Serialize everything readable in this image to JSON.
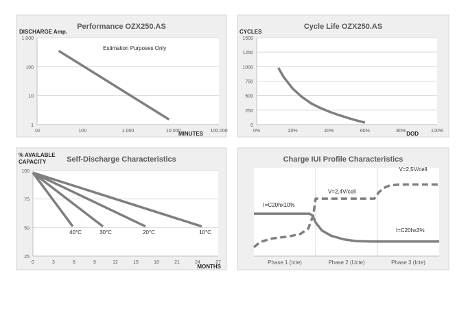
{
  "colors": {
    "panel_bg": "#efefef",
    "panel_border": "#d4d4d4",
    "plot_bg": "#ffffff",
    "grid": "#d9d9d9",
    "axis": "#bfbfbf",
    "series": "#7f7f7f",
    "title": "#595959",
    "text": "#262626",
    "tick": "#595959"
  },
  "chart_data": [
    {
      "type": "line",
      "title": "Performance OZX250.AS",
      "ylabel": "DISCHARGE Amp.",
      "xlabel": "MINUTES",
      "x_scale": "log",
      "y_scale": "log",
      "xlim": [
        10,
        100000
      ],
      "ylim": [
        1,
        1000
      ],
      "x_ticks": [
        10,
        100,
        1000,
        10000,
        100000
      ],
      "x_tick_labels": [
        "10",
        "100",
        "1.000",
        "10.000",
        "100.000"
      ],
      "y_ticks": [
        1,
        10,
        100,
        1000
      ],
      "y_tick_labels": [
        "1",
        "10",
        "100",
        "1.000"
      ],
      "grid": true,
      "annotations": [
        {
          "text": "Estimation Purposes Only",
          "x": 1400,
          "y": 380
        }
      ],
      "series": [
        {
          "points": [
            [
              30,
              350
            ],
            [
              8000,
              1.5
            ]
          ]
        }
      ]
    },
    {
      "type": "line",
      "title": "Cycle Life OZX250.AS",
      "ylabel": "CYCLES",
      "xlabel": "DOD",
      "xlim": [
        0,
        100
      ],
      "ylim": [
        0,
        1500
      ],
      "x_ticks": [
        0,
        20,
        40,
        60,
        80,
        100
      ],
      "x_tick_labels": [
        "0%",
        "20%",
        "40%",
        "60%",
        "80%",
        "100%"
      ],
      "y_ticks": [
        0,
        250,
        500,
        750,
        1000,
        1250,
        1500
      ],
      "y_tick_labels": [
        "0",
        "250",
        "500",
        "750",
        "1000",
        "1250",
        "1500"
      ],
      "grid": true,
      "series": [
        {
          "points": [
            [
              12,
              980
            ],
            [
              15,
              820
            ],
            [
              20,
              620
            ],
            [
              25,
              480
            ],
            [
              30,
              370
            ],
            [
              35,
              290
            ],
            [
              40,
              225
            ],
            [
              45,
              170
            ],
            [
              50,
              120
            ],
            [
              55,
              75
            ],
            [
              60,
              35
            ]
          ]
        }
      ]
    },
    {
      "type": "line",
      "title": "Self-Discharge Characteristics",
      "ylabel_lines": [
        "% AVAILABLE",
        "CAPACITY"
      ],
      "xlabel": "MONTHS",
      "xlim": [
        0,
        27
      ],
      "ylim": [
        25,
        100
      ],
      "x_ticks": [
        0,
        3,
        6,
        9,
        12,
        15,
        18,
        21,
        24,
        27
      ],
      "x_tick_labels": [
        "0",
        "3",
        "6",
        "9",
        "12",
        "15",
        "18",
        "21",
        "24",
        "27"
      ],
      "y_ticks": [
        25,
        50,
        75,
        100
      ],
      "y_tick_labels": [
        "25",
        "50",
        "75",
        "100"
      ],
      "grid": true,
      "series": [
        {
          "label": "40°C",
          "points": [
            [
              0,
              98
            ],
            [
              5.8,
              51
            ]
          ],
          "label_at": [
            6.2,
            46
          ]
        },
        {
          "label": "30°C",
          "points": [
            [
              0,
              98
            ],
            [
              10.2,
              51
            ]
          ],
          "label_at": [
            10.6,
            46
          ]
        },
        {
          "label": "20°C",
          "points": [
            [
              0,
              98
            ],
            [
              16.4,
              51
            ]
          ],
          "label_at": [
            16.9,
            46
          ]
        },
        {
          "label": "10°C",
          "points": [
            [
              0,
              98
            ],
            [
              24.6,
              51
            ]
          ],
          "label_at": [
            25.1,
            46
          ]
        }
      ]
    },
    {
      "type": "line",
      "title": "Charge IUI Profile Characteristics",
      "xlim": [
        0,
        3
      ],
      "ylim": [
        0,
        100
      ],
      "x_tick_labels": [
        "Phase 1 (Icte)",
        "Phase 2 (Ucte)",
        "Phase 3 (Icte)"
      ],
      "grid": true,
      "annotations": [
        {
          "text": "I=C20hx10%",
          "x": 0.15,
          "y": 56
        },
        {
          "text": "V=2,4V/cell",
          "x": 1.2,
          "y": 71
        },
        {
          "text": "V=2,5V/cell",
          "x": 2.35,
          "y": 96
        },
        {
          "text": "I=C20hx3%",
          "x": 2.3,
          "y": 27
        }
      ],
      "series": [
        {
          "name": "current",
          "style": "solid",
          "points": [
            [
              0,
              48
            ],
            [
              0.9,
              48
            ],
            [
              0.95,
              46
            ],
            [
              1.0,
              38
            ],
            [
              1.1,
              29
            ],
            [
              1.25,
              23
            ],
            [
              1.45,
              19
            ],
            [
              1.65,
              17
            ],
            [
              1.9,
              16.5
            ],
            [
              3,
              16.5
            ]
          ]
        },
        {
          "name": "voltage",
          "style": "dashed",
          "points": [
            [
              0,
              10
            ],
            [
              0.1,
              16
            ],
            [
              0.3,
              20
            ],
            [
              0.55,
              22
            ],
            [
              0.75,
              25
            ],
            [
              0.88,
              31
            ],
            [
              0.96,
              46
            ],
            [
              1.0,
              65
            ],
            [
              1.95,
              65
            ],
            [
              2.02,
              72
            ],
            [
              2.1,
              77
            ],
            [
              2.2,
              80
            ],
            [
              2.35,
              81
            ],
            [
              3,
              81
            ]
          ]
        }
      ]
    }
  ]
}
